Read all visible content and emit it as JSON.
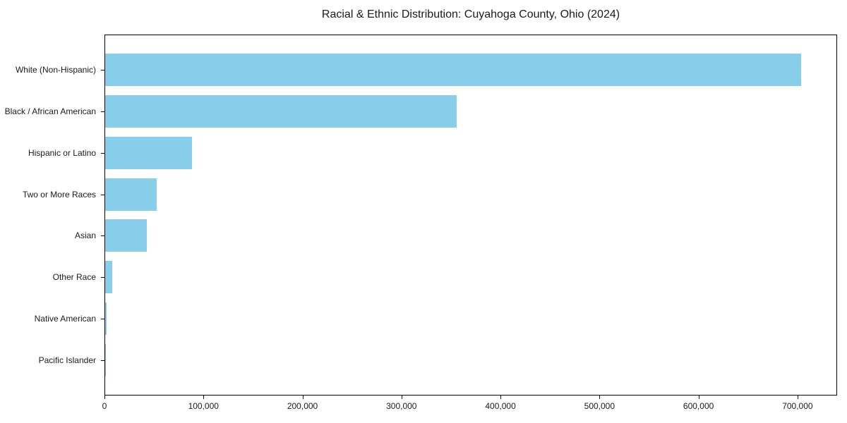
{
  "chart_data": {
    "type": "bar",
    "orientation": "horizontal",
    "title": "Racial & Ethnic Distribution: Cuyahoga County, Ohio (2024)",
    "categories": [
      "White (Non-Hispanic)",
      "Black / African American",
      "Hispanic or Latino",
      "Two or More Races",
      "Asian",
      "Other Race",
      "Native American",
      "Pacific Islander"
    ],
    "values": [
      704000,
      356000,
      88000,
      52000,
      42000,
      7300,
      1400,
      350
    ],
    "x_ticks": [
      0,
      100000,
      200000,
      300000,
      400000,
      500000,
      600000,
      700000
    ],
    "x_tick_labels": [
      "0",
      "100,000",
      "200,000",
      "300,000",
      "400,000",
      "500,000",
      "600,000",
      "700,000"
    ],
    "xlim": [
      0,
      740000
    ],
    "xlabel": "",
    "ylabel": "",
    "bar_color": "#87ceeb",
    "grid": false,
    "legend": null
  }
}
